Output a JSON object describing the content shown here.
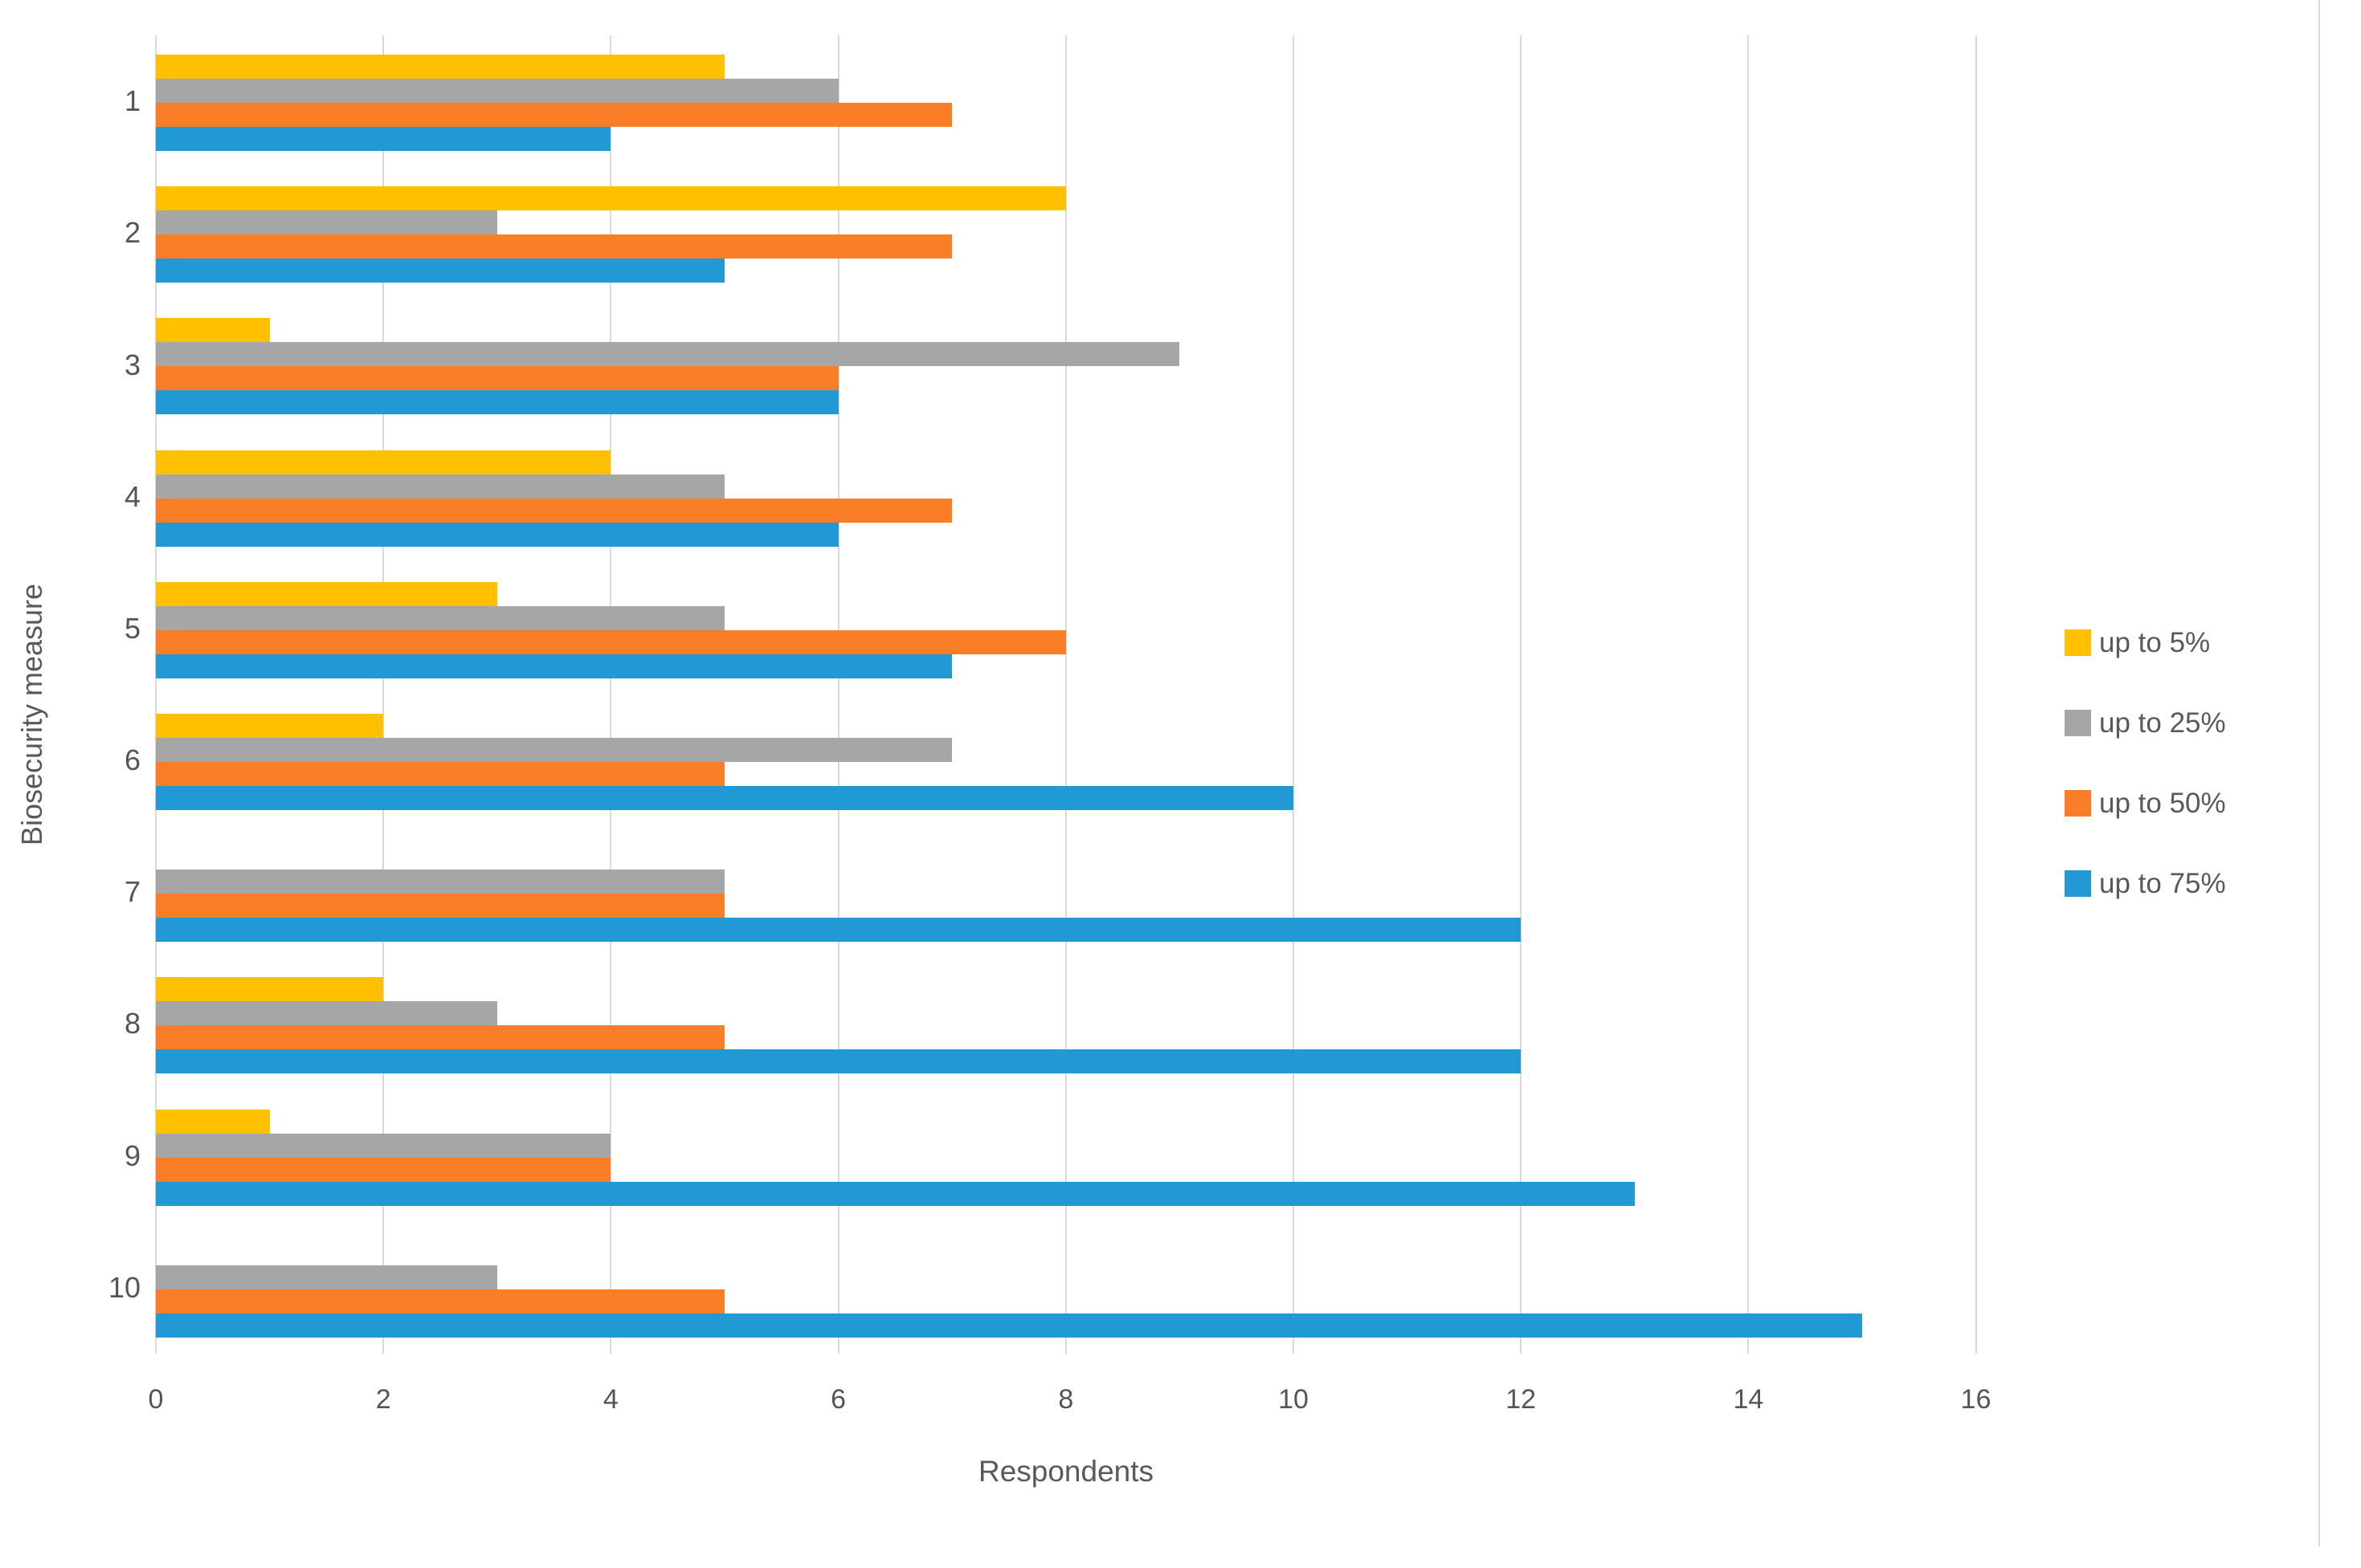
{
  "chart_data": {
    "type": "bar",
    "orientation": "horizontal",
    "xlabel": "Respondents",
    "ylabel": "Biosecurity measure",
    "categories": [
      "1",
      "2",
      "3",
      "4",
      "5",
      "6",
      "7",
      "8",
      "9",
      "10"
    ],
    "x_ticks": [
      0,
      2,
      4,
      6,
      8,
      10,
      12,
      14,
      16
    ],
    "xlim": [
      0,
      16
    ],
    "grid": "vertical-gridlines-on",
    "legend_position": "right-middle",
    "series": [
      {
        "name": "up to 5%",
        "color": "#FFC000",
        "values": [
          5,
          8,
          1,
          4,
          3,
          2,
          0,
          2,
          1,
          0
        ]
      },
      {
        "name": "up to 25%",
        "color": "#A6A6A6",
        "values": [
          6,
          3,
          9,
          5,
          5,
          7,
          5,
          3,
          4,
          3
        ]
      },
      {
        "name": "up to 50%",
        "color": "#F97E27",
        "values": [
          7,
          7,
          6,
          7,
          8,
          5,
          5,
          5,
          4,
          5
        ]
      },
      {
        "name": "up to 75%",
        "color": "#2099D5",
        "values": [
          4,
          5,
          6,
          6,
          7,
          10,
          12,
          12,
          13,
          15
        ]
      }
    ]
  },
  "colors": {
    "gridline": "#D9D9D9",
    "axis_text": "#595959"
  }
}
